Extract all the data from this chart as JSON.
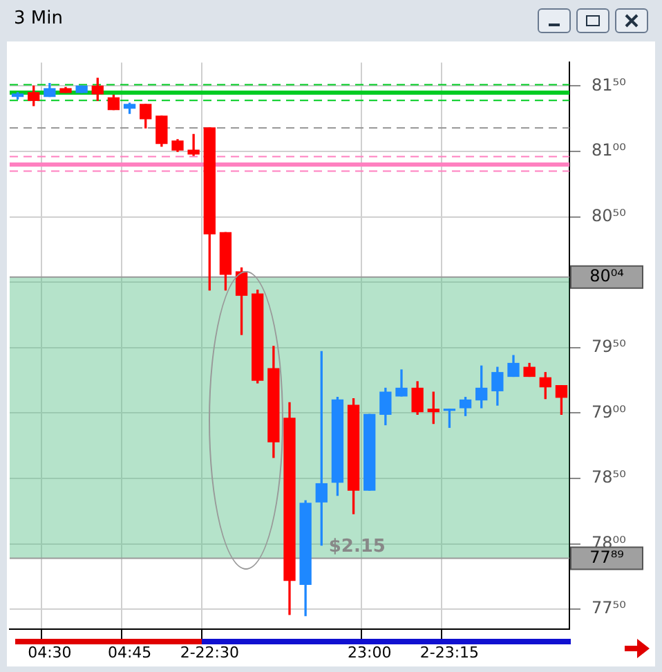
{
  "chart_data": {
    "type": "candlestick",
    "title": "3 Min",
    "categories": [
      null,
      null,
      "04:30",
      null,
      null,
      null,
      null,
      "04:45",
      null,
      null,
      null,
      null,
      "2-22:30",
      null,
      null,
      null,
      null,
      null,
      null,
      null,
      null,
      null,
      "23:00",
      null,
      null,
      null,
      null,
      "2-23:15",
      null,
      null,
      null,
      null,
      null,
      null,
      null
    ],
    "ohlc": [
      [
        81.42,
        81.45,
        81.4,
        81.44
      ],
      [
        81.45,
        81.5,
        81.35,
        81.39
      ],
      [
        81.42,
        81.52,
        81.42,
        81.48
      ],
      [
        81.48,
        81.49,
        81.45,
        81.45
      ],
      [
        81.45,
        81.5,
        81.45,
        81.5
      ],
      [
        81.5,
        81.56,
        81.39,
        81.44
      ],
      [
        81.41,
        81.43,
        81.32,
        81.32
      ],
      [
        81.33,
        81.37,
        81.29,
        81.36
      ],
      [
        81.36,
        81.36,
        81.18,
        81.25
      ],
      [
        81.27,
        81.27,
        81.04,
        81.06
      ],
      [
        81.08,
        81.09,
        81.0,
        81.01
      ],
      [
        81.01,
        81.13,
        80.97,
        80.98
      ],
      [
        81.18,
        81.18,
        79.94,
        80.37
      ],
      [
        80.38,
        80.38,
        79.94,
        80.06
      ],
      [
        80.08,
        80.11,
        79.6,
        79.9
      ],
      [
        79.91,
        79.94,
        79.23,
        79.25
      ],
      [
        79.34,
        79.51,
        78.66,
        78.78
      ],
      [
        78.96,
        79.08,
        77.46,
        77.72
      ],
      [
        77.69,
        78.33,
        77.45,
        78.31
      ],
      [
        78.32,
        79.47,
        77.99,
        78.46
      ],
      [
        78.47,
        79.12,
        78.37,
        79.1
      ],
      [
        79.06,
        79.11,
        78.23,
        78.41
      ],
      [
        78.41,
        78.99,
        78.41,
        78.99
      ],
      [
        78.99,
        79.19,
        78.91,
        79.16
      ],
      [
        79.13,
        79.33,
        79.13,
        79.19
      ],
      [
        79.19,
        79.24,
        78.99,
        79.01
      ],
      [
        79.03,
        79.16,
        78.92,
        79.01
      ],
      [
        79.02,
        79.03,
        78.89,
        79.03
      ],
      [
        79.04,
        79.12,
        78.98,
        79.1
      ],
      [
        79.1,
        79.36,
        79.04,
        79.19
      ],
      [
        79.17,
        79.35,
        79.06,
        79.31
      ],
      [
        79.28,
        79.44,
        79.28,
        79.38
      ],
      [
        79.35,
        79.38,
        79.28,
        79.28
      ],
      [
        79.27,
        79.31,
        79.11,
        79.2
      ],
      [
        79.21,
        79.21,
        78.99,
        79.12
      ]
    ],
    "colors": [
      "#1e88ff",
      "#ff0000",
      "#1e88ff",
      "#ff0000",
      "#1e88ff",
      "#ff0000",
      "#ff0000",
      "#1e88ff",
      "#ff0000",
      "#ff0000",
      "#ff0000",
      "#ff0000",
      "#ff0000",
      "#ff0000",
      "#ff0000",
      "#ff0000",
      "#ff0000",
      "#ff0000",
      "#1e88ff",
      "#1e88ff",
      "#1e88ff",
      "#ff0000",
      "#1e88ff",
      "#1e88ff",
      "#1e88ff",
      "#ff0000",
      "#ff0000",
      "#1e88ff",
      "#1e88ff",
      "#1e88ff",
      "#1e88ff",
      "#1e88ff",
      "#ff0000",
      "#ff0000",
      "#ff0000"
    ],
    "ylim": [
      77.35,
      81.68
    ],
    "yticks": [
      {
        "value": 77.5,
        "label": "77⁵⁰"
      },
      {
        "value": 78,
        "label": "78⁰⁰"
      },
      {
        "value": 78.5,
        "label": "78⁵⁰"
      },
      {
        "value": 79,
        "label": "79⁰⁰"
      },
      {
        "value": 79.5,
        "label": "79⁵⁰"
      },
      {
        "value": 80,
        "label": null
      },
      {
        "value": 80.5,
        "label": "80⁵⁰"
      },
      {
        "value": 81,
        "label": "81⁰⁰"
      },
      {
        "value": 81.5,
        "label": "81⁵⁰"
      }
    ],
    "grid": true,
    "ref_lines": [
      {
        "axis": "y",
        "value": 81.51,
        "color": "#00cc22",
        "line_style": "dashed"
      },
      {
        "axis": "y",
        "value": 81.45,
        "color": "#00cc22",
        "line_style": "solid"
      },
      {
        "axis": "y",
        "value": 81.39,
        "color": "#00cc22",
        "line_style": "dashed"
      },
      {
        "axis": "y",
        "value": 81.18,
        "color": "#999999",
        "line_style": "dashed"
      },
      {
        "axis": "y",
        "value": 80.96,
        "color": "#ff80c0",
        "line_style": "dashed"
      },
      {
        "axis": "y",
        "value": 80.9,
        "color": "#ff80c0",
        "line_style": "solid"
      },
      {
        "axis": "y",
        "value": 80.85,
        "color": "#ff80c0",
        "line_style": "dashed"
      },
      {
        "axis": "y",
        "value": 80.04,
        "label": "80⁰⁴",
        "color": "#999999",
        "line_style": "solid"
      },
      {
        "axis": "y",
        "value": 77.89,
        "label": "77⁸⁹",
        "color": "#999999",
        "line_style": "solid"
      }
    ],
    "bands": [
      {
        "axis": "y",
        "from": 77.89,
        "to": 80.04,
        "label": "$2.15",
        "color": "#5cc08a"
      }
    ]
  }
}
